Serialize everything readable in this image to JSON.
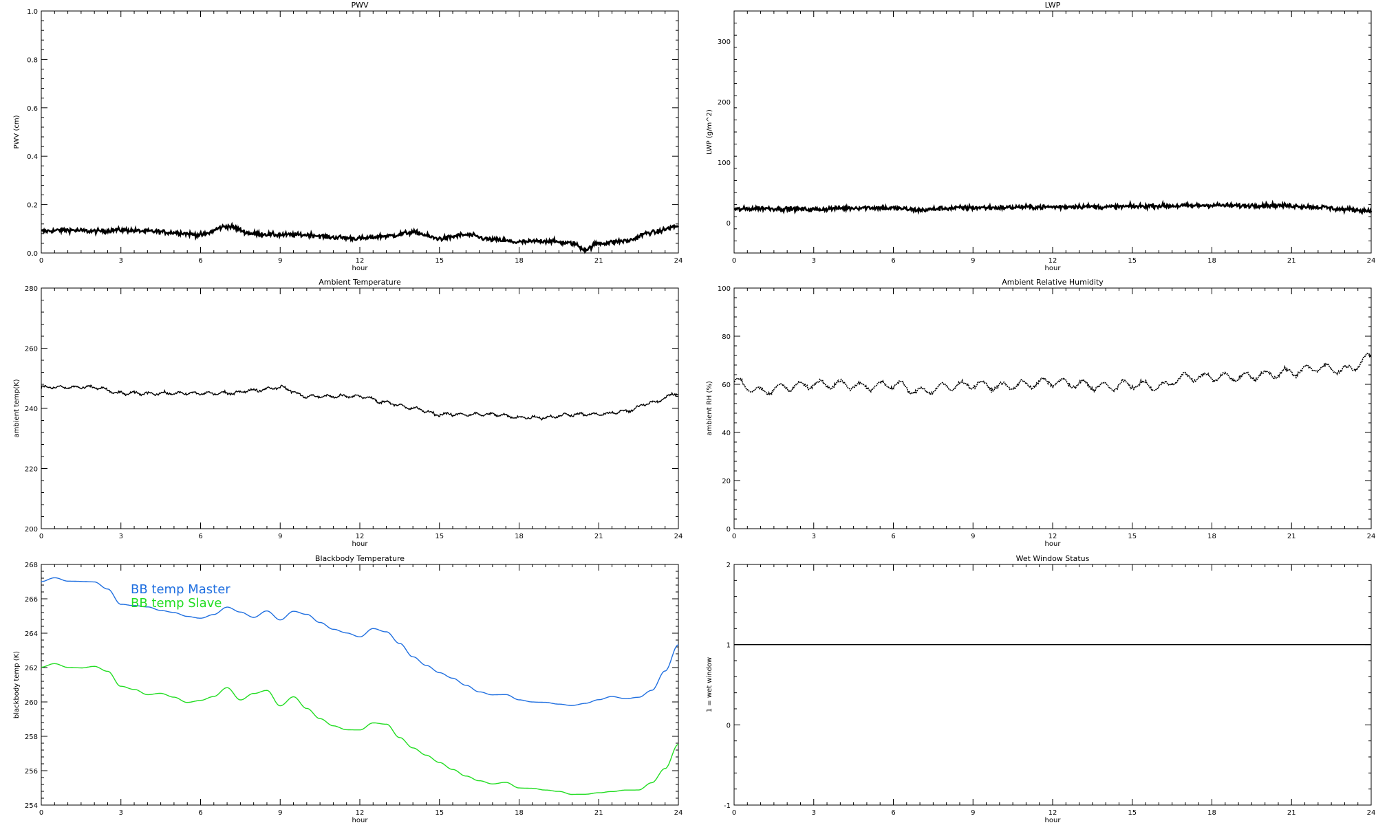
{
  "chart_data": [
    {
      "type": "line",
      "title": "PWV",
      "xlabel": "hour",
      "ylabel": "PWV (cm)",
      "xlim": [
        0,
        24
      ],
      "ylim": [
        0.0,
        1.0
      ],
      "xticks": [
        0,
        3,
        6,
        9,
        12,
        15,
        18,
        21,
        24
      ],
      "yticks": [
        0.0,
        0.2,
        0.4,
        0.6,
        0.8,
        1.0
      ],
      "ytick_labels": [
        "0.0",
        "0.2",
        "0.4",
        "0.6",
        "0.8",
        "1.0"
      ],
      "style": "noisy",
      "series": [
        {
          "color": "#000000",
          "x": [
            0,
            1,
            2,
            3,
            4,
            5,
            6,
            7,
            8,
            9,
            10,
            11,
            12,
            13,
            14,
            15,
            16,
            17,
            18,
            19,
            20,
            20.5,
            21,
            22,
            23,
            24
          ],
          "y": [
            0.09,
            0.095,
            0.09,
            0.095,
            0.09,
            0.085,
            0.075,
            0.11,
            0.08,
            0.075,
            0.075,
            0.065,
            0.06,
            0.07,
            0.085,
            0.06,
            0.075,
            0.055,
            0.045,
            0.05,
            0.04,
            0.015,
            0.04,
            0.05,
            0.085,
            0.11
          ]
        }
      ]
    },
    {
      "type": "line",
      "title": "LWP",
      "xlabel": "hour",
      "ylabel": "LWP (g/m^2)",
      "xlim": [
        0,
        24
      ],
      "ylim": [
        -50,
        350
      ],
      "xticks": [
        0,
        3,
        6,
        9,
        12,
        15,
        18,
        21,
        24
      ],
      "yticks": [
        0,
        100,
        200,
        300
      ],
      "ytick_labels": [
        "0",
        "100",
        "200",
        "300"
      ],
      "style": "noisy",
      "series": [
        {
          "color": "#000000",
          "x": [
            0,
            1,
            2,
            3,
            4,
            5,
            6,
            7,
            8,
            9,
            10,
            11,
            12,
            13,
            14,
            15,
            16,
            17,
            18,
            19,
            20,
            21,
            22,
            23,
            24
          ],
          "y": [
            22,
            24,
            23,
            22,
            24,
            25,
            24,
            21,
            24,
            25,
            25,
            26,
            26,
            27,
            26,
            27,
            28,
            28,
            29,
            28,
            29,
            28,
            26,
            22,
            20
          ]
        }
      ]
    },
    {
      "type": "line",
      "title": "Ambient Temperature",
      "xlabel": "hour",
      "ylabel": "ambient temp(K)",
      "xlim": [
        0,
        24
      ],
      "ylim": [
        200,
        280
      ],
      "xticks": [
        0,
        3,
        6,
        9,
        12,
        15,
        18,
        21,
        24
      ],
      "yticks": [
        200,
        220,
        240,
        260,
        280
      ],
      "ytick_labels": [
        "200",
        "220",
        "240",
        "260",
        "280"
      ],
      "style": "wiggly",
      "series": [
        {
          "color": "#000000",
          "x": [
            0,
            1,
            2,
            3,
            4,
            5,
            6,
            7,
            8,
            9,
            10,
            11,
            12,
            13,
            14,
            15,
            16,
            17,
            18,
            19,
            20,
            21,
            22,
            23,
            24
          ],
          "y": [
            247,
            247,
            247,
            245,
            245,
            245,
            245,
            245,
            246,
            247,
            244,
            244,
            244,
            242,
            240,
            238,
            238,
            238,
            237,
            237,
            238,
            238,
            239,
            242,
            245
          ]
        }
      ]
    },
    {
      "type": "line",
      "title": "Ambient Relative Humidity",
      "xlabel": "hour",
      "ylabel": "ambient RH (%)",
      "xlim": [
        0,
        24
      ],
      "ylim": [
        0,
        100
      ],
      "xticks": [
        0,
        3,
        6,
        9,
        12,
        15,
        18,
        21,
        24
      ],
      "yticks": [
        0,
        20,
        40,
        60,
        80,
        100
      ],
      "ytick_labels": [
        "0",
        "20",
        "40",
        "60",
        "80",
        "100"
      ],
      "style": "dotted",
      "series": [
        {
          "color": "#000000",
          "x": [
            0,
            1,
            2,
            3,
            4,
            5,
            6,
            7,
            8,
            9,
            10,
            11,
            12,
            13,
            14,
            15,
            16,
            17,
            18,
            19,
            20,
            21,
            22,
            23,
            24
          ],
          "y": [
            61,
            57,
            59,
            60,
            60,
            59,
            60,
            57,
            59,
            60,
            59,
            60,
            61,
            60,
            59,
            60,
            59,
            63,
            63,
            63,
            64,
            65,
            67,
            66,
            71
          ]
        }
      ]
    },
    {
      "type": "line",
      "title": "Blackbody Temperature",
      "xlabel": "hour",
      "ylabel": "blackbody temp (K)",
      "xlim": [
        0,
        24
      ],
      "ylim": [
        254,
        268
      ],
      "xticks": [
        0,
        3,
        6,
        9,
        12,
        15,
        18,
        21,
        24
      ],
      "yticks": [
        254,
        256,
        258,
        260,
        262,
        264,
        266,
        268
      ],
      "ytick_labels": [
        "254",
        "256",
        "258",
        "260",
        "262",
        "264",
        "266",
        "268"
      ],
      "style": "smooth",
      "legend": "top-left",
      "series": [
        {
          "name": "BB temp Master",
          "color": "#1f6fe0",
          "x": [
            0,
            0.5,
            1,
            1.5,
            2,
            2.5,
            3,
            3.5,
            4,
            4.5,
            5,
            5.5,
            6,
            6.5,
            7,
            7.5,
            8,
            8.5,
            9,
            9.5,
            10,
            10.5,
            11,
            11.5,
            12,
            12.5,
            13,
            13.5,
            14,
            14.5,
            15,
            15.5,
            16,
            16.5,
            17,
            17.5,
            18,
            18.5,
            19,
            19.5,
            20,
            20.5,
            21,
            21.5,
            22,
            22.5,
            23,
            23.5,
            24
          ],
          "y": [
            267.0,
            267.2,
            267.0,
            267.0,
            267.0,
            266.6,
            265.7,
            265.6,
            265.5,
            265.3,
            265.2,
            265.0,
            264.9,
            265.1,
            265.5,
            265.2,
            264.9,
            265.3,
            264.8,
            265.3,
            265.1,
            264.6,
            264.2,
            264.0,
            263.8,
            264.3,
            264.1,
            263.4,
            262.6,
            262.1,
            261.7,
            261.4,
            261.0,
            260.6,
            260.4,
            260.4,
            260.1,
            260.0,
            260.0,
            259.9,
            259.8,
            259.9,
            260.1,
            260.3,
            260.2,
            260.3,
            260.7,
            261.8,
            263.3
          ]
        },
        {
          "name": "BB temp Slave",
          "color": "#22dd22",
          "x": [
            0,
            0.5,
            1,
            1.5,
            2,
            2.5,
            3,
            3.5,
            4,
            4.5,
            5,
            5.5,
            6,
            6.5,
            7,
            7.5,
            8,
            8.5,
            9,
            9.5,
            10,
            10.5,
            11,
            11.5,
            12,
            12.5,
            13,
            13.5,
            14,
            14.5,
            15,
            15.5,
            16,
            16.5,
            17,
            17.5,
            18,
            18.5,
            19,
            19.5,
            20,
            20.5,
            21,
            21.5,
            22,
            22.5,
            23,
            23.5,
            24
          ],
          "y": [
            262.0,
            262.2,
            262.0,
            262.0,
            262.1,
            261.8,
            260.9,
            260.7,
            260.4,
            260.5,
            260.3,
            260.0,
            260.1,
            260.3,
            260.8,
            260.1,
            260.5,
            260.7,
            259.8,
            260.3,
            259.6,
            259.0,
            258.6,
            258.4,
            258.4,
            258.8,
            258.7,
            257.9,
            257.3,
            256.9,
            256.5,
            256.1,
            255.7,
            255.4,
            255.2,
            255.3,
            255.0,
            255.0,
            254.9,
            254.8,
            254.6,
            254.6,
            254.7,
            254.8,
            254.9,
            254.9,
            255.3,
            256.1,
            257.5
          ]
        }
      ]
    },
    {
      "type": "line",
      "title": "Wet Window Status",
      "xlabel": "hour",
      "ylabel": "1 = wet window",
      "xlim": [
        0,
        24
      ],
      "ylim": [
        -1,
        2
      ],
      "xticks": [
        0,
        3,
        6,
        9,
        12,
        15,
        18,
        21,
        24
      ],
      "yticks": [
        -1,
        0,
        1,
        2
      ],
      "ytick_labels": [
        "-1",
        "0",
        "1",
        "2"
      ],
      "style": "flat",
      "series": [
        {
          "color": "#000000",
          "x": [
            0,
            24
          ],
          "y": [
            1,
            1
          ]
        }
      ]
    }
  ]
}
